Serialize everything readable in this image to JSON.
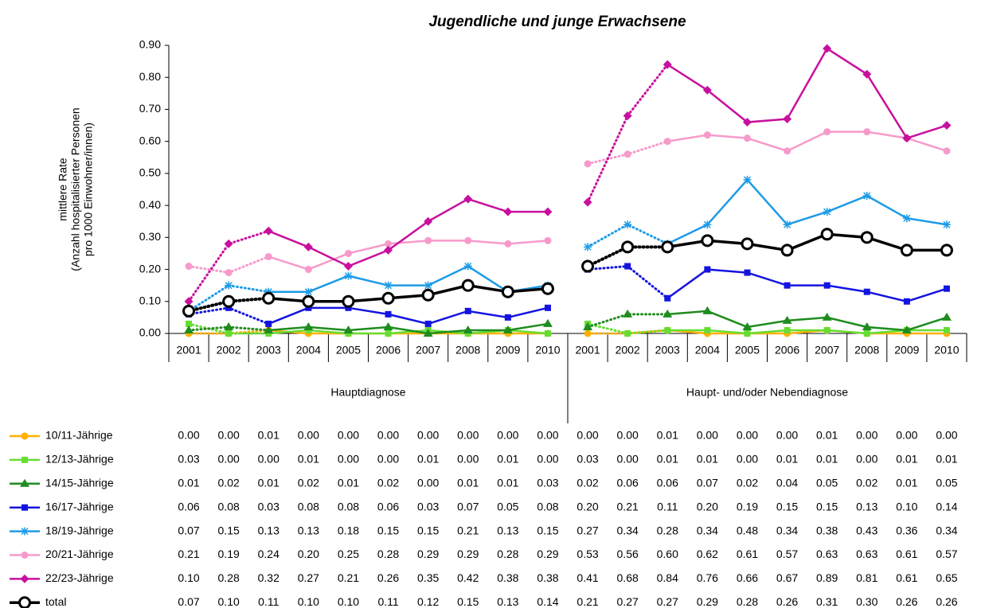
{
  "chart_data": {
    "type": "line",
    "title": "Jugendliche und junge Erwachsene",
    "ylabel_lines": [
      "mittlere Rate",
      "(Anzahl hospitalisierter Personen",
      "pro 1000 Einwohner/innen)"
    ],
    "groups": [
      "Hauptdiagnose",
      "Haupt- und/oder Nebendiagnose"
    ],
    "categories": [
      "2001",
      "2002",
      "2003",
      "2004",
      "2005",
      "2006",
      "2007",
      "2008",
      "2009",
      "2010",
      "2001",
      "2002",
      "2003",
      "2004",
      "2005",
      "2006",
      "2007",
      "2008",
      "2009",
      "2010"
    ],
    "ylim": [
      0,
      0.9
    ],
    "yticks": [
      {
        "value": 0,
        "label": "0.00"
      },
      {
        "value": 0.1,
        "label": "0.10"
      },
      {
        "value": 0.2,
        "label": "0.20"
      },
      {
        "value": 0.3,
        "label": "0.30"
      },
      {
        "value": 0.4,
        "label": "0.40"
      },
      {
        "value": 0.5,
        "label": "0.50"
      },
      {
        "value": 0.6,
        "label": "0.60"
      },
      {
        "value": 0.7,
        "label": "0.70"
      },
      {
        "value": 0.8,
        "label": "0.80"
      },
      {
        "value": 0.9,
        "label": "0.90"
      }
    ],
    "series": [
      {
        "name": "10/11-Jährige",
        "color": "#ffb000",
        "marker": "circle",
        "values": [
          0,
          0,
          0.01,
          0,
          0,
          0,
          0,
          0,
          0,
          0,
          0,
          0,
          0.01,
          0,
          0,
          0,
          0.01,
          0,
          0,
          0
        ],
        "value_labels": [
          "0.00",
          "0.00",
          "0.01",
          "0.00",
          "0.00",
          "0.00",
          "0.00",
          "0.00",
          "0.00",
          "0.00",
          "0.00",
          "0.00",
          "0.01",
          "0.00",
          "0.00",
          "0.00",
          "0.01",
          "0.00",
          "0.00",
          "0.00"
        ]
      },
      {
        "name": "12/13-Jährige",
        "color": "#66dd33",
        "marker": "square",
        "values": [
          0.03,
          0,
          0,
          0.01,
          0,
          0,
          0.01,
          0,
          0.01,
          0,
          0.03,
          0,
          0.01,
          0.01,
          0,
          0.01,
          0.01,
          0,
          0.01,
          0.01
        ],
        "value_labels": [
          "0.03",
          "0.00",
          "0.00",
          "0.01",
          "0.00",
          "0.00",
          "0.01",
          "0.00",
          "0.01",
          "0.00",
          "0.03",
          "0.00",
          "0.01",
          "0.01",
          "0.00",
          "0.01",
          "0.01",
          "0.00",
          "0.01",
          "0.01"
        ]
      },
      {
        "name": "14/15-Jährige",
        "color": "#1e8c1e",
        "marker": "triangle",
        "values": [
          0.01,
          0.02,
          0.01,
          0.02,
          0.01,
          0.02,
          0,
          0.01,
          0.01,
          0.03,
          0.02,
          0.06,
          0.06,
          0.07,
          0.02,
          0.04,
          0.05,
          0.02,
          0.01,
          0.05
        ],
        "value_labels": [
          "0.01",
          "0.02",
          "0.01",
          "0.02",
          "0.01",
          "0.02",
          "0.00",
          "0.01",
          "0.01",
          "0.03",
          "0.02",
          "0.06",
          "0.06",
          "0.07",
          "0.02",
          "0.04",
          "0.05",
          "0.02",
          "0.01",
          "0.05"
        ]
      },
      {
        "name": "16/17-Jährige",
        "color": "#1414e0",
        "marker": "square",
        "values": [
          0.06,
          0.08,
          0.03,
          0.08,
          0.08,
          0.06,
          0.03,
          0.07,
          0.05,
          0.08,
          0.2,
          0.21,
          0.11,
          0.2,
          0.19,
          0.15,
          0.15,
          0.13,
          0.1,
          0.14
        ],
        "value_labels": [
          "0.06",
          "0.08",
          "0.03",
          "0.08",
          "0.08",
          "0.06",
          "0.03",
          "0.07",
          "0.05",
          "0.08",
          "0.20",
          "0.21",
          "0.11",
          "0.20",
          "0.19",
          "0.15",
          "0.15",
          "0.13",
          "0.10",
          "0.14"
        ]
      },
      {
        "name": "18/19-Jährige",
        "color": "#1e9be6",
        "marker": "star",
        "values": [
          0.07,
          0.15,
          0.13,
          0.13,
          0.18,
          0.15,
          0.15,
          0.21,
          0.13,
          0.15,
          0.27,
          0.34,
          0.28,
          0.34,
          0.48,
          0.34,
          0.38,
          0.43,
          0.36,
          0.34
        ],
        "value_labels": [
          "0.07",
          "0.15",
          "0.13",
          "0.13",
          "0.18",
          "0.15",
          "0.15",
          "0.21",
          "0.13",
          "0.15",
          "0.27",
          "0.34",
          "0.28",
          "0.34",
          "0.48",
          "0.34",
          "0.38",
          "0.43",
          "0.36",
          "0.34"
        ]
      },
      {
        "name": "20/21-Jährige",
        "color": "#f79acb",
        "marker": "circle",
        "values": [
          0.21,
          0.19,
          0.24,
          0.2,
          0.25,
          0.28,
          0.29,
          0.29,
          0.28,
          0.29,
          0.53,
          0.56,
          0.6,
          0.62,
          0.61,
          0.57,
          0.63,
          0.63,
          0.61,
          0.57
        ],
        "value_labels": [
          "0.21",
          "0.19",
          "0.24",
          "0.20",
          "0.25",
          "0.28",
          "0.29",
          "0.29",
          "0.28",
          "0.29",
          "0.53",
          "0.56",
          "0.60",
          "0.62",
          "0.61",
          "0.57",
          "0.63",
          "0.63",
          "0.61",
          "0.57"
        ]
      },
      {
        "name": "22/23-Jährige",
        "color": "#c8109e",
        "marker": "diamond",
        "values": [
          0.1,
          0.28,
          0.32,
          0.27,
          0.21,
          0.26,
          0.35,
          0.42,
          0.38,
          0.38,
          0.41,
          0.68,
          0.84,
          0.76,
          0.66,
          0.67,
          0.89,
          0.81,
          0.61,
          0.65
        ],
        "value_labels": [
          "0.10",
          "0.28",
          "0.32",
          "0.27",
          "0.21",
          "0.26",
          "0.35",
          "0.42",
          "0.38",
          "0.38",
          "0.41",
          "0.68",
          "0.84",
          "0.76",
          "0.66",
          "0.67",
          "0.89",
          "0.81",
          "0.61",
          "0.65"
        ]
      },
      {
        "name": "total",
        "color": "#000000",
        "marker": "open-circle",
        "values": [
          0.07,
          0.1,
          0.11,
          0.1,
          0.1,
          0.11,
          0.12,
          0.15,
          0.13,
          0.14,
          0.21,
          0.27,
          0.27,
          0.29,
          0.28,
          0.26,
          0.31,
          0.3,
          0.26,
          0.26
        ],
        "value_labels": [
          "0.07",
          "0.10",
          "0.11",
          "0.10",
          "0.10",
          "0.11",
          "0.12",
          "0.15",
          "0.13",
          "0.14",
          "0.21",
          "0.27",
          "0.27",
          "0.29",
          "0.28",
          "0.26",
          "0.31",
          "0.30",
          "0.26",
          "0.26"
        ]
      }
    ]
  }
}
